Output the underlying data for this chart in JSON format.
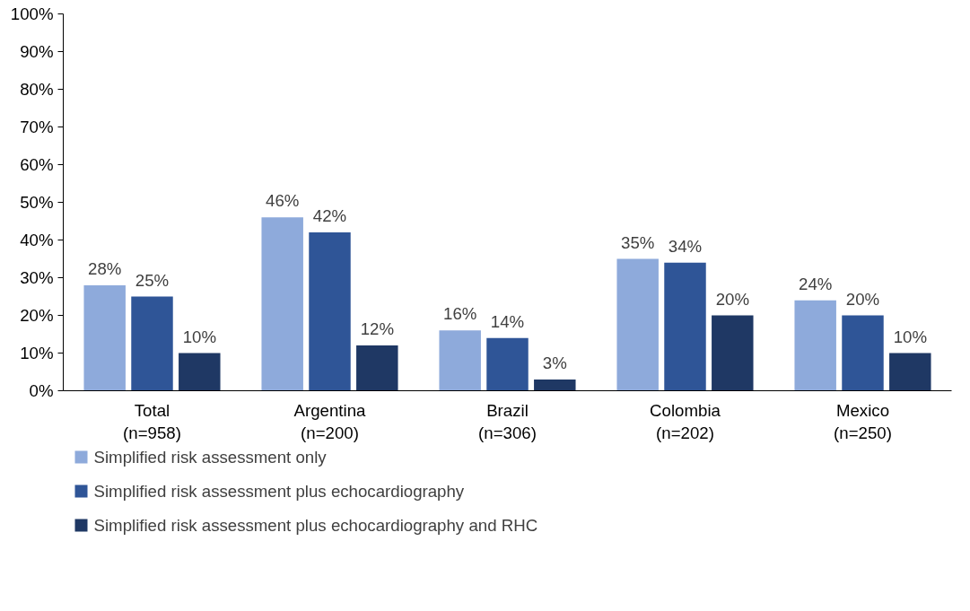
{
  "chart_data": {
    "type": "bar",
    "categories": [
      "Total\n(n=958)",
      "Argentina\n(n=200)",
      "Brazil\n(n=306)",
      "Colombia\n(n=202)",
      "Mexico\n(n=250)"
    ],
    "series": [
      {
        "name": "Simplified risk assessment only",
        "color": "#8eaadb",
        "values": [
          28,
          46,
          16,
          35,
          24
        ],
        "value_labels": [
          "28%",
          "46%",
          "16%",
          "35%",
          "24%"
        ]
      },
      {
        "name": "Simplified risk assessment plus echocardiography",
        "color": "#2f5597",
        "values": [
          25,
          42,
          14,
          34,
          20
        ],
        "value_labels": [
          "25%",
          "42%",
          "14%",
          "34%",
          "20%"
        ]
      },
      {
        "name": "Simplified risk assessment plus echocardiography and RHC",
        "color": "#1f3864",
        "values": [
          10,
          12,
          3,
          20,
          10
        ],
        "value_labels": [
          "10%",
          "12%",
          "3%",
          "20%",
          "10%"
        ]
      }
    ],
    "ylim": [
      0,
      100
    ],
    "yticks": [
      {
        "value": 0,
        "label": "0%"
      },
      {
        "value": 10,
        "label": "10%"
      },
      {
        "value": 20,
        "label": "20%"
      },
      {
        "value": 30,
        "label": "30%"
      },
      {
        "value": 40,
        "label": "40%"
      },
      {
        "value": 50,
        "label": "50%"
      },
      {
        "value": 60,
        "label": "60%"
      },
      {
        "value": 70,
        "label": "70%"
      },
      {
        "value": 80,
        "label": "80%"
      },
      {
        "value": 90,
        "label": "90%"
      },
      {
        "value": 100,
        "label": "100%"
      }
    ],
    "grid": false,
    "legend": "bottom"
  }
}
